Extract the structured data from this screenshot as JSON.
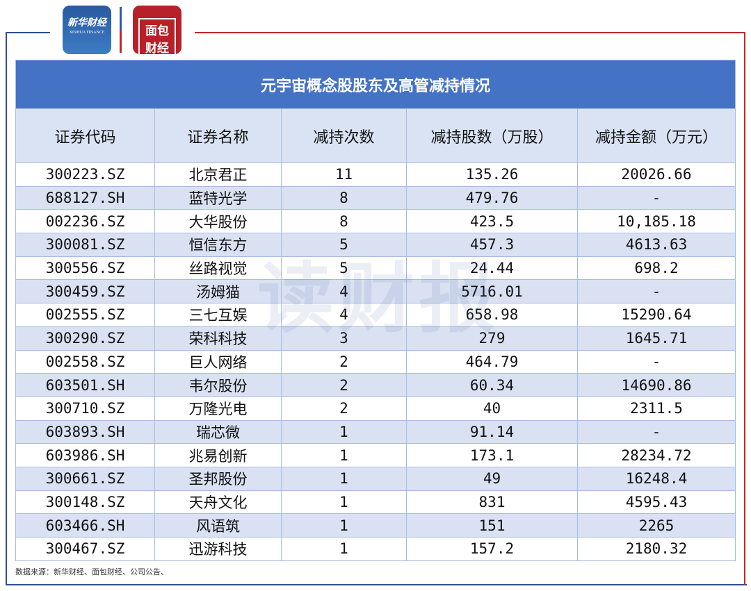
{
  "logos": {
    "xinhua_cn": "新华财经",
    "xinhua_en": "XINHUA FINANCE",
    "bread": "面包财经"
  },
  "title": "元宇宙概念股股东及高管减持情况",
  "columns": [
    "证券代码",
    "证券名称",
    "减持次数",
    "减持股数（万股）",
    "减持金额（万元）"
  ],
  "rows": [
    [
      "300223.SZ",
      "北京君正",
      "11",
      "135.26",
      "20026.66"
    ],
    [
      "688127.SH",
      "蓝特光学",
      "8",
      "479.76",
      "-"
    ],
    [
      "002236.SZ",
      "大华股份",
      "8",
      "423.5",
      "10,185.18"
    ],
    [
      "300081.SZ",
      "恒信东方",
      "5",
      "457.3",
      "4613.63"
    ],
    [
      "300556.SZ",
      "丝路视觉",
      "5",
      "24.44",
      "698.2"
    ],
    [
      "300459.SZ",
      "汤姆猫",
      "4",
      "5716.01",
      "-"
    ],
    [
      "002555.SZ",
      "三七互娱",
      "4",
      "658.98",
      "15290.64"
    ],
    [
      "300290.SZ",
      "荣科科技",
      "3",
      "279",
      "1645.71"
    ],
    [
      "002558.SZ",
      "巨人网络",
      "2",
      "464.79",
      "-"
    ],
    [
      "603501.SH",
      "韦尔股份",
      "2",
      "60.34",
      "14690.86"
    ],
    [
      "300710.SZ",
      "万隆光电",
      "2",
      "40",
      "2311.5"
    ],
    [
      "603893.SH",
      "瑞芯微",
      "1",
      "91.14",
      "-"
    ],
    [
      "603986.SH",
      "兆易创新",
      "1",
      "173.1",
      "28234.72"
    ],
    [
      "300661.SZ",
      "圣邦股份",
      "1",
      "49",
      "16248.4"
    ],
    [
      "300148.SZ",
      "天舟文化",
      "1",
      "831",
      "4595.43"
    ],
    [
      "603466.SH",
      "风语筑",
      "1",
      "151",
      "2265"
    ],
    [
      "300467.SZ",
      "迅游科技",
      "1",
      "157.2",
      "2180.32"
    ]
  ],
  "watermark": "读财报",
  "source": "数据来源：新华财经、面包财经、公司公告、",
  "colors": {
    "title_bar": "#4472c4",
    "row_alt": "#d9e1f2",
    "frame_blue": "#2f4f8f",
    "frame_red": "#c0272d"
  }
}
